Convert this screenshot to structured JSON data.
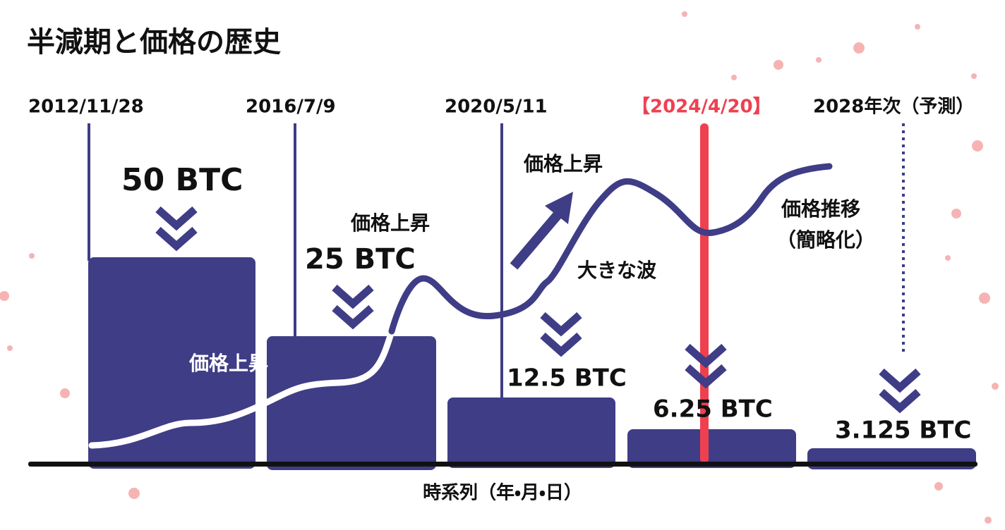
{
  "title": "半減期と価格の歴史",
  "halvings": [
    {
      "date": "2012/11/28",
      "reward": "50 BTC"
    },
    {
      "date": "2016/7/9",
      "reward": "25 BTC"
    },
    {
      "date": "2020/5/11",
      "reward": "12.5 BTC"
    },
    {
      "date": "【2024/4/20】",
      "reward": "6.25 BTC"
    },
    {
      "date": "2028年次（予測）",
      "reward": "3.125 BTC"
    }
  ],
  "annotations": {
    "price_rise_1": "価格上昇",
    "price_rise_2": "価格上昇",
    "price_rise_3": "価格上昇",
    "big_wave": "大きな波",
    "price_trend": "価格推移",
    "simplified": "（簡略化）"
  },
  "x_axis_label": "時系列（年・月・日）"
}
